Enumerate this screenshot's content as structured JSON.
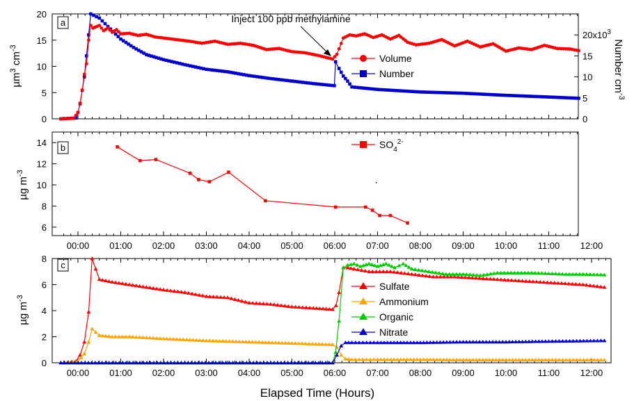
{
  "chart_data": [
    {
      "panel": "a",
      "type": "line",
      "ylabel_left": "µm³ cm⁻³",
      "ylabel_right": "Number cm⁻³",
      "ylim_left": [
        0,
        20
      ],
      "yticks_left": [
        0,
        5,
        10,
        15,
        20
      ],
      "ylim_right": [
        0,
        25000
      ],
      "yticks_right": [
        0,
        5000,
        10000,
        15000,
        20000
      ],
      "ytick_labels_right": [
        "0",
        "5",
        "10",
        "15",
        "20x10³"
      ],
      "xlim_hours": [
        -0.4,
        12.6
      ],
      "annotation": "Inject 100 ppb methylamine",
      "annotation_time_hours": 6.0,
      "legend_placement": "right-center",
      "series": [
        {
          "name": "Volume",
          "axis": "left",
          "color": "#ff0000",
          "marker": "circle",
          "x_hours": [
            -0.4,
            -0.1,
            0.0,
            0.05,
            0.1,
            0.15,
            0.2,
            0.25,
            0.3,
            0.35,
            0.5,
            0.6,
            0.7,
            0.8,
            0.9,
            1.0,
            1.2,
            1.4,
            1.6,
            1.8,
            2.0,
            2.3,
            2.6,
            2.9,
            3.2,
            3.5,
            3.8,
            4.1,
            4.4,
            4.7,
            5.0,
            5.3,
            5.6,
            5.8,
            5.95,
            6.05,
            6.2,
            6.35,
            6.5,
            6.7,
            6.9,
            7.1,
            7.3,
            7.5,
            7.7,
            7.9,
            8.2,
            8.5,
            8.8,
            9.1,
            9.4,
            9.7,
            10.0,
            10.3,
            10.6,
            10.9,
            11.2,
            11.5,
            11.7
          ],
          "y": [
            0.0,
            0.1,
            1.2,
            3.0,
            5.5,
            8.5,
            10.5,
            15.0,
            17.8,
            17.3,
            17.8,
            16.8,
            17.3,
            16.5,
            17.0,
            16.2,
            16.3,
            15.9,
            16.1,
            15.6,
            15.4,
            15.1,
            14.8,
            14.4,
            14.8,
            14.2,
            14.4,
            14.0,
            13.2,
            13.4,
            12.8,
            12.6,
            12.1,
            11.7,
            11.4,
            12.3,
            15.4,
            16.0,
            15.8,
            16.2,
            15.5,
            16.0,
            15.2,
            15.9,
            14.6,
            14.1,
            14.4,
            15.1,
            13.9,
            14.8,
            13.7,
            14.3,
            12.9,
            13.5,
            13.2,
            14.0,
            13.4,
            13.3,
            13.0
          ]
        },
        {
          "name": "Number",
          "axis": "right",
          "color": "#0000cc",
          "marker": "square",
          "x_hours": [
            -0.4,
            -0.05,
            0.0,
            0.05,
            0.15,
            0.25,
            0.3,
            0.5,
            0.7,
            1.0,
            1.3,
            1.6,
            2.0,
            2.5,
            3.0,
            3.5,
            4.0,
            4.5,
            5.0,
            5.5,
            5.99,
            6.02,
            6.1,
            6.2,
            6.3,
            6.4,
            7.0,
            7.5,
            8.0,
            9.0,
            10.0,
            11.0,
            11.7
          ],
          "y": [
            0,
            200,
            1500,
            3600,
            10000,
            20000,
            25000,
            24000,
            22000,
            19000,
            17000,
            15300,
            14100,
            12900,
            11800,
            11200,
            10300,
            9600,
            9000,
            8400,
            7900,
            13600,
            12000,
            10200,
            9000,
            7600,
            7000,
            6700,
            6400,
            6100,
            5600,
            5200,
            4900
          ]
        }
      ]
    },
    {
      "panel": "b",
      "type": "line",
      "ylabel": "µg m⁻³",
      "ylim": [
        5.2,
        15
      ],
      "yticks": [
        6,
        8,
        10,
        12,
        14
      ],
      "xlim_hours": [
        -0.4,
        12.6
      ],
      "legend_placement": "top-center",
      "series": [
        {
          "name": "SO₄²⁻",
          "color": "#ff0000",
          "marker": "square",
          "x_hours": [
            0.92,
            1.45,
            1.82,
            2.62,
            2.82,
            3.07,
            3.52,
            4.38,
            6.02,
            6.72,
            6.88,
            7.05,
            7.3,
            7.7
          ],
          "y": [
            13.6,
            12.3,
            12.4,
            11.1,
            10.5,
            10.3,
            11.2,
            8.5,
            7.9,
            7.9,
            7.6,
            7.1,
            7.1,
            6.4
          ]
        }
      ]
    },
    {
      "panel": "c",
      "type": "line",
      "ylabel": "µg m⁻³",
      "xlabel": "Elapsed Time (Hours)",
      "ylim": [
        0,
        8
      ],
      "yticks": [
        0,
        2,
        4,
        6,
        8
      ],
      "xlim_hours": [
        -0.4,
        12.6
      ],
      "legend_placement": "right-center",
      "series": [
        {
          "name": "Sulfate",
          "color": "#ff0000",
          "marker": "triangle",
          "x_hours": [
            -0.4,
            -0.05,
            0.05,
            0.15,
            0.25,
            0.33,
            0.5,
            0.8,
            1.2,
            1.6,
            2.0,
            2.5,
            3.0,
            3.5,
            4.0,
            4.5,
            5.0,
            5.5,
            5.95,
            6.03,
            6.1,
            6.2,
            6.3,
            6.45,
            6.8,
            7.3,
            7.8,
            8.3,
            8.8,
            9.3,
            9.8,
            10.3,
            10.8,
            11.3,
            11.8,
            12.3
          ],
          "y": [
            0.0,
            0.1,
            0.6,
            1.6,
            3.9,
            8.0,
            6.4,
            6.2,
            6.0,
            5.8,
            5.6,
            5.4,
            5.1,
            5.0,
            4.6,
            4.5,
            4.3,
            4.2,
            4.1,
            4.4,
            5.4,
            7.3,
            7.3,
            7.2,
            7.0,
            7.0,
            6.8,
            6.6,
            6.6,
            6.5,
            6.4,
            6.3,
            6.2,
            6.1,
            6.0,
            5.8
          ]
        },
        {
          "name": "Ammonium",
          "color": "#ffa500",
          "marker": "triangle",
          "x_hours": [
            -0.4,
            0.0,
            0.15,
            0.25,
            0.33,
            0.5,
            0.8,
            1.2,
            2.0,
            3.0,
            4.0,
            5.0,
            5.95,
            6.05,
            6.15,
            6.25,
            6.4,
            7.0,
            8.0,
            9.0,
            10.0,
            11.0,
            12.3
          ],
          "y": [
            0.0,
            0.1,
            0.7,
            1.6,
            2.6,
            2.1,
            2.0,
            2.0,
            1.85,
            1.7,
            1.6,
            1.5,
            1.4,
            1.2,
            0.6,
            0.3,
            0.25,
            0.25,
            0.25,
            0.22,
            0.22,
            0.22,
            0.22
          ]
        },
        {
          "name": "Organic",
          "color": "#00cc00",
          "marker": "triangle",
          "x_hours": [
            -0.4,
            5.95,
            6.02,
            6.1,
            6.2,
            6.3,
            6.45,
            6.6,
            6.8,
            7.0,
            7.2,
            7.4,
            7.6,
            7.8,
            8.2,
            8.6,
            9.0,
            9.4,
            9.8,
            10.2,
            10.6,
            11.0,
            11.4,
            11.8,
            12.3
          ],
          "y": [
            0.0,
            0.0,
            0.8,
            3.2,
            7.3,
            7.5,
            7.6,
            7.4,
            7.6,
            7.4,
            7.6,
            7.3,
            7.6,
            7.2,
            7.0,
            6.8,
            6.8,
            6.7,
            6.9,
            6.9,
            6.9,
            6.85,
            6.8,
            6.8,
            6.75
          ]
        },
        {
          "name": "Nitrate",
          "color": "#0000cc",
          "marker": "triangle",
          "x_hours": [
            -0.4,
            5.95,
            6.05,
            6.15,
            6.25,
            6.4,
            7.0,
            8.0,
            9.0,
            10.0,
            11.0,
            12.3
          ],
          "y": [
            0.0,
            0.0,
            0.6,
            1.3,
            1.55,
            1.55,
            1.55,
            1.55,
            1.6,
            1.6,
            1.65,
            1.7
          ]
        }
      ]
    }
  ],
  "panel_labels": [
    "a",
    "b",
    "c"
  ],
  "time_tick_labels": [
    "00:00",
    "01:00",
    "02:00",
    "03:00",
    "04:00",
    "05:00",
    "06:00",
    "07:00",
    "08:00",
    "09:00",
    "10:00",
    "11:00",
    "12:00"
  ],
  "xlabel": "Elapsed Time (Hours)",
  "annotation": "Inject 100 ppb methylamine",
  "legends": {
    "a": [
      "Volume",
      "Number"
    ],
    "b": [
      "SO₄²⁻"
    ],
    "c": [
      "Sulfate",
      "Ammonium",
      "Organic",
      "Nitrate"
    ]
  }
}
